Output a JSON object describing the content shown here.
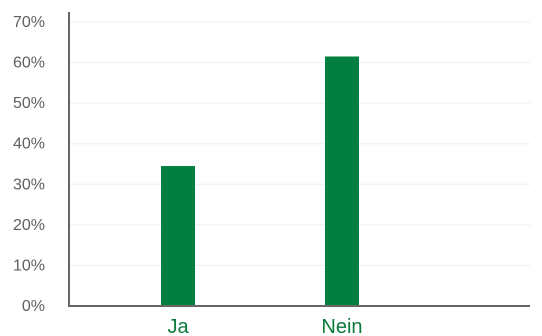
{
  "chart_data": {
    "type": "bar",
    "title": "",
    "xlabel": "",
    "ylabel": "",
    "categories": [
      "Ja",
      "Nein"
    ],
    "values": [
      34.5,
      61.5
    ],
    "value_unit": "%",
    "ylim": [
      0,
      70
    ],
    "yticks": [
      0,
      10,
      20,
      30,
      40,
      50,
      60,
      70
    ],
    "ytick_labels": [
      "0%",
      "10%",
      "20%",
      "30%",
      "40%",
      "50%",
      "60%",
      "70%"
    ],
    "grid": true,
    "legend": "none",
    "colors": {
      "bar": "#007f40",
      "category_label": "#0a7a3a",
      "axis": "#666666",
      "grid": "#eeeeee",
      "tick_label": "#5f5f5f"
    }
  }
}
